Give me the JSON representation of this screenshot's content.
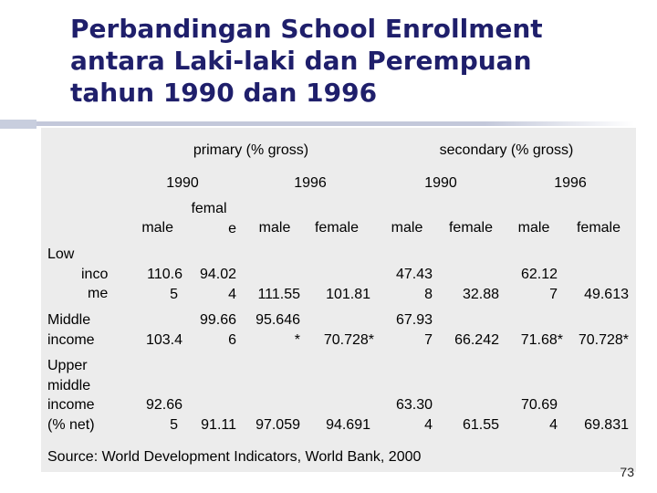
{
  "slide": {
    "title_lines": [
      "Perbandingan School Enrollment",
      "antara Laki-laki dan Perempuan",
      "tahun 1990 dan 1996"
    ],
    "source": "Source: World Development Indicators, World Bank, 2000",
    "page_number": "73"
  },
  "table": {
    "group_headers": {
      "primary": "primary (% gross)",
      "secondary": "secondary (% gross)"
    },
    "year_headers": {
      "primary_1990": "1990",
      "primary_1996": "1996",
      "secondary_1990": "1990",
      "secondary_1996": "1996"
    },
    "sex_headers": {
      "p1990_male": "male",
      "p1990_female": [
        "femal",
        "e"
      ],
      "p1996_male": "male",
      "p1996_female": "female",
      "s1990_male": "male",
      "s1990_female": "female",
      "s1996_male": "male",
      "s1996_female": "female"
    },
    "rows": [
      {
        "label": [
          "Low",
          "inco",
          "me"
        ],
        "p1990_male": [
          "110.6",
          "5"
        ],
        "p1990_female": [
          "94.02",
          "4"
        ],
        "p1996_male": "111.55",
        "p1996_female": "101.81",
        "s1990_male": [
          "47.43",
          "8"
        ],
        "s1990_female": "32.88",
        "s1996_male": [
          "62.12",
          "7"
        ],
        "s1996_female": "49.613"
      },
      {
        "label": [
          "Middle",
          "income"
        ],
        "p1990_male": "103.4",
        "p1990_female": [
          "99.66",
          "6"
        ],
        "p1996_male": [
          "95.646",
          "*"
        ],
        "p1996_female": "70.728*",
        "s1990_male": [
          "67.93",
          "7"
        ],
        "s1990_female": "66.242",
        "s1996_male": "71.68*",
        "s1996_female": "70.728*"
      },
      {
        "label": [
          "Upper",
          "middle",
          "income",
          "(% net)"
        ],
        "p1990_male": [
          "92.66",
          "5"
        ],
        "p1990_female": "91.11",
        "p1996_male": "97.059",
        "p1996_female": "94.691",
        "s1990_male": [
          "63.30",
          "4"
        ],
        "s1990_female": "61.55",
        "s1996_male": [
          "70.69",
          "4"
        ],
        "s1996_female": "69.831"
      }
    ]
  }
}
